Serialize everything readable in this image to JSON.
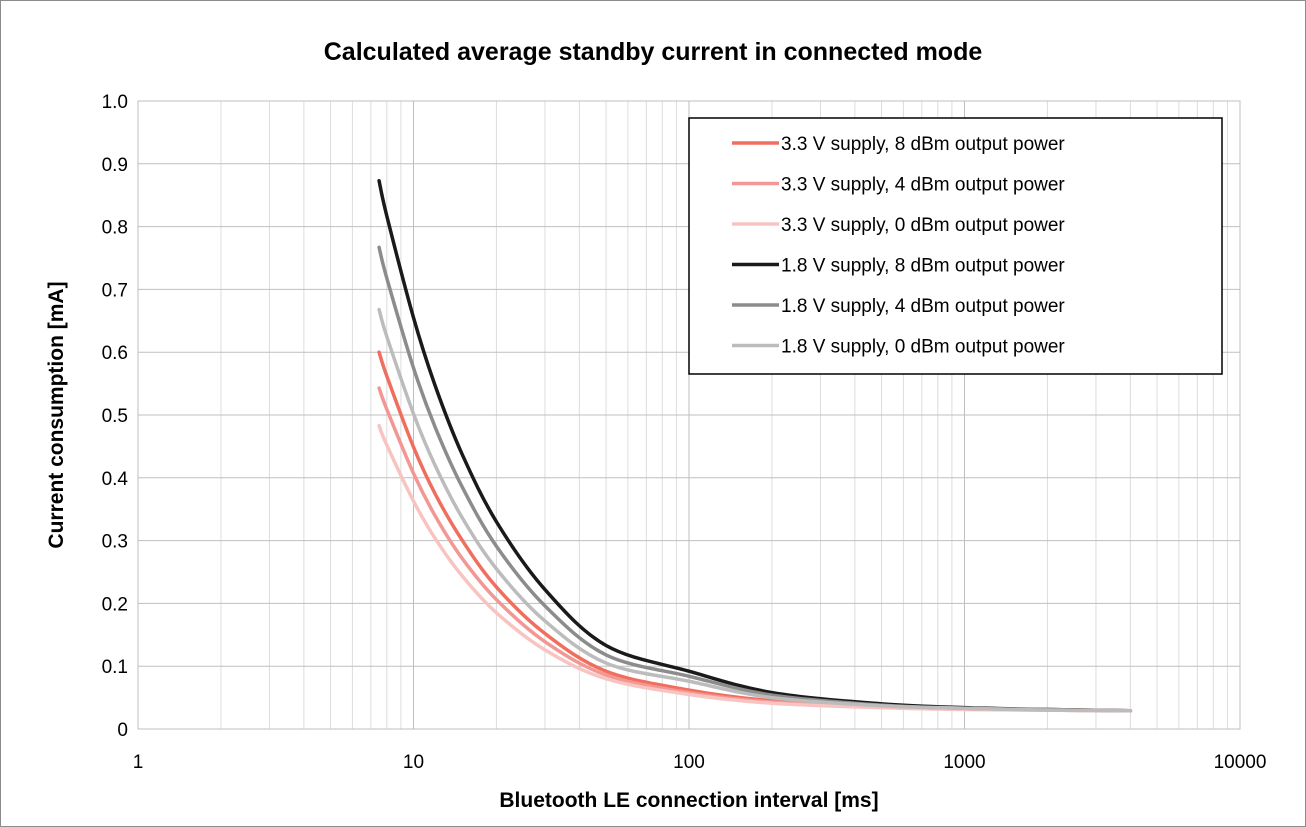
{
  "chart_data": {
    "type": "line",
    "title": "Calculated average standby current in connected mode",
    "xlabel": "Bluetooth LE connection interval [ms]",
    "ylabel": "Current consumption [mA]",
    "x_scale": "log",
    "xlim": [
      1,
      10000
    ],
    "ylim": [
      0,
      1.0
    ],
    "x_ticks": [
      1,
      10,
      100,
      1000,
      10000
    ],
    "x_tick_labels": [
      "1",
      "10",
      "100",
      "1000",
      "10000"
    ],
    "y_ticks": [
      0,
      0.1,
      0.2,
      0.3,
      0.4,
      0.5,
      0.6,
      0.7,
      0.8,
      0.9,
      1.0
    ],
    "y_tick_labels": [
      "0",
      "0.1",
      "0.2",
      "0.3",
      "0.4",
      "0.5",
      "0.6",
      "0.7",
      "0.8",
      "0.9",
      "1.0"
    ],
    "grid": true,
    "legend_position": "top-right",
    "x": [
      7.5,
      8,
      10,
      12,
      15,
      20,
      30,
      50,
      100,
      200,
      500,
      1000,
      2000,
      4000
    ],
    "series": [
      {
        "name": "3.3 V supply, 8 dBm output power",
        "color": "#f06e5e",
        "values": [
          0.6,
          0.562,
          0.449,
          0.374,
          0.301,
          0.226,
          0.152,
          0.092,
          0.062,
          0.045,
          0.036,
          0.033,
          0.031,
          0.029
        ]
      },
      {
        "name": "3.3 V supply, 4 dBm output power",
        "color": "#f39794",
        "values": [
          0.543,
          0.509,
          0.407,
          0.339,
          0.272,
          0.206,
          0.139,
          0.086,
          0.058,
          0.043,
          0.035,
          0.032,
          0.03,
          0.029
        ]
      },
      {
        "name": "3.3 V supply, 0 dBm output power",
        "color": "#f8c4c1",
        "values": [
          0.483,
          0.452,
          0.363,
          0.303,
          0.244,
          0.185,
          0.126,
          0.08,
          0.055,
          0.041,
          0.034,
          0.031,
          0.03,
          0.029
        ]
      },
      {
        "name": "1.8 V supply, 8 dBm output power",
        "color": "#1a1a1a",
        "values": [
          0.873,
          0.817,
          0.655,
          0.546,
          0.438,
          0.33,
          0.222,
          0.133,
          0.092,
          0.058,
          0.04,
          0.034,
          0.031,
          0.029
        ]
      },
      {
        "name": "1.8 V supply, 4 dBm output power",
        "color": "#8c8c8c",
        "values": [
          0.767,
          0.718,
          0.575,
          0.48,
          0.386,
          0.291,
          0.196,
          0.118,
          0.084,
          0.054,
          0.038,
          0.033,
          0.031,
          0.029
        ]
      },
      {
        "name": "1.8 V supply, 0 dBm output power",
        "color": "#bcbcbc",
        "values": [
          0.668,
          0.625,
          0.502,
          0.419,
          0.337,
          0.255,
          0.172,
          0.105,
          0.076,
          0.05,
          0.037,
          0.033,
          0.03,
          0.029
        ]
      }
    ]
  }
}
